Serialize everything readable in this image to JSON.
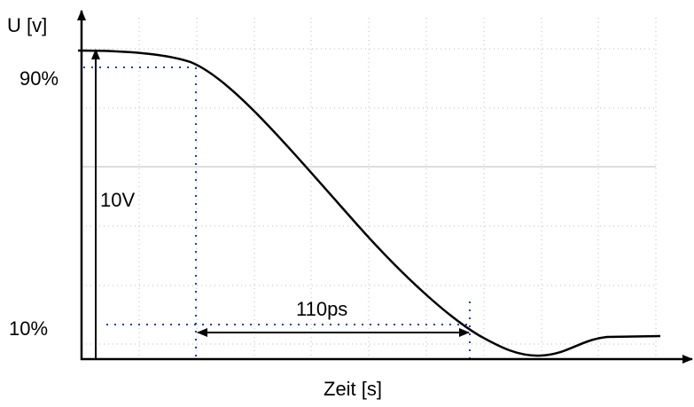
{
  "axis_labels": {
    "y": "U [v]",
    "x": "Zeit [s]"
  },
  "annotations": {
    "upper_level": "90%",
    "lower_level": "10%",
    "amplitude": "10V",
    "fall_time": "110ps"
  }
}
